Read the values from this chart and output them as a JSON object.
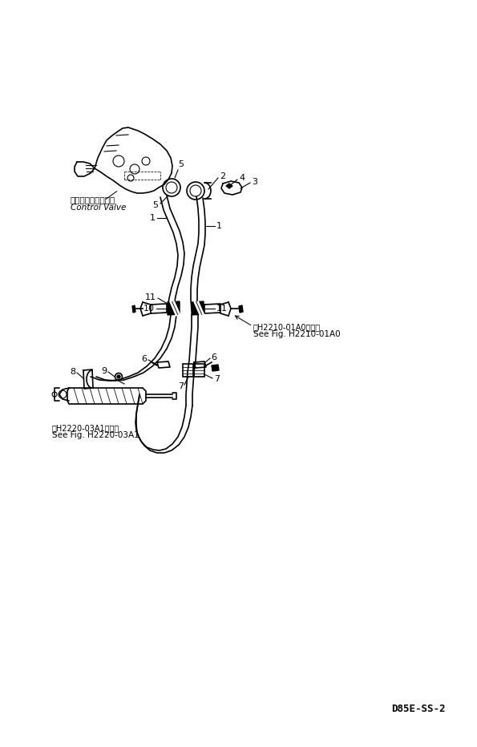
{
  "bg_color": "#ffffff",
  "line_color": "#000000",
  "fig_width": 5.95,
  "fig_height": 9.32,
  "dpi": 100,
  "watermark": "D85E-SS-2",
  "label_control_valve_jp": "コントロールバルブ",
  "label_control_valve_en": "Control Valve",
  "label_see_fig1_jp": "第H2210-01A0図参照",
  "label_see_fig1_en": "See Fig. H2210-01A0",
  "label_see_fig2_jp": "第H2220-03A1図参照",
  "label_see_fig2_en": "See Fig. H2220-03A1",
  "line_width": 1.2,
  "tick_lw": 0.8
}
